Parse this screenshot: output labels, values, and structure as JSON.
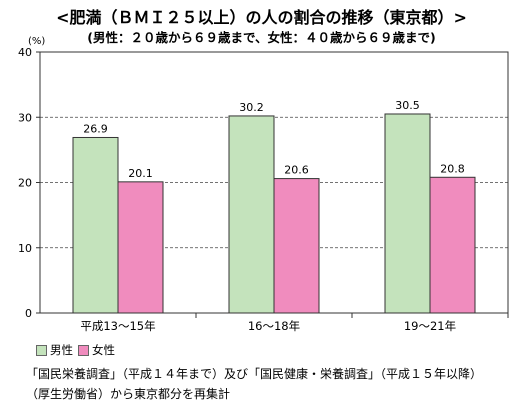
{
  "header": {
    "title": "<肥満（ＢＭＩ２５以上）の人の割合の推移（東京都）>",
    "subtitle": "(男性：２０歳から６９歳まで、女性：４０歳から６９歳まで)"
  },
  "legend": {
    "male": "男性",
    "female": "女性"
  },
  "notes": [
    "「国民栄養調査」（平成１４年まで）及び「国民健康・栄養調査」（平成１５年以降）",
    "（厚生労働省）から東京都分を再集計"
  ],
  "colors": {
    "male": "#c4e3bc",
    "female": "#f08cbe",
    "border": "#333333",
    "grid": "#444444"
  },
  "chart_data": {
    "type": "bar",
    "categories": [
      "平成13〜15年",
      "16〜18年",
      "19〜21年"
    ],
    "series": [
      {
        "name": "男性",
        "values": [
          26.9,
          30.2,
          30.5
        ]
      },
      {
        "name": "女性",
        "values": [
          20.1,
          20.6,
          20.8
        ]
      }
    ],
    "ylabel": "(%)",
    "ylim": [
      0,
      40
    ],
    "yticks": [
      0,
      10,
      20,
      30,
      40
    ],
    "grid": "dashed",
    "legend_position": "bottom-left"
  }
}
